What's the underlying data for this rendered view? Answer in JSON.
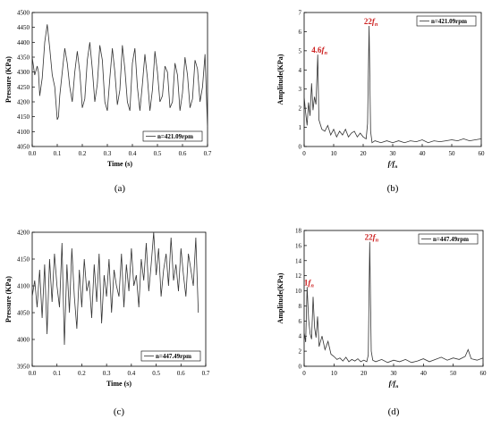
{
  "figure": {
    "background": "#ffffff",
    "line_color": "#333333",
    "accent_color": "#cc1f1f"
  },
  "chart_data": [
    {
      "id": "a",
      "type": "line",
      "caption": "(a)",
      "xlabel": "Time (s)",
      "ylabel": "Pressure (KPa)",
      "xlim": [
        0.0,
        0.7
      ],
      "ylim": [
        4050,
        4500
      ],
      "xticks": [
        "0.0",
        "0.1",
        "0.2",
        "0.3",
        "0.4",
        "0.5",
        "0.6",
        "0.7"
      ],
      "yticks": [
        "4050",
        "4100",
        "4150",
        "4200",
        "4250",
        "4300",
        "4350",
        "4400",
        "4450",
        "4500"
      ],
      "legend": "n=421.09rpm",
      "legend_position": "bottom-right",
      "series": [
        {
          "name": "n=421.09rpm",
          "x": [
            0.0,
            0.01,
            0.02,
            0.025,
            0.03,
            0.04,
            0.05,
            0.06,
            0.07,
            0.08,
            0.09,
            0.1,
            0.105,
            0.11,
            0.12,
            0.13,
            0.14,
            0.15,
            0.16,
            0.17,
            0.18,
            0.19,
            0.2,
            0.21,
            0.22,
            0.23,
            0.24,
            0.25,
            0.26,
            0.27,
            0.28,
            0.29,
            0.3,
            0.31,
            0.32,
            0.33,
            0.34,
            0.35,
            0.36,
            0.37,
            0.38,
            0.39,
            0.4,
            0.41,
            0.42,
            0.43,
            0.44,
            0.45,
            0.46,
            0.47,
            0.48,
            0.49,
            0.5,
            0.51,
            0.52,
            0.53,
            0.54,
            0.55,
            0.56,
            0.57,
            0.58,
            0.59,
            0.6,
            0.61,
            0.62,
            0.63,
            0.64,
            0.65,
            0.66,
            0.67,
            0.68,
            0.69,
            0.7
          ],
          "values": [
            4350,
            4290,
            4320,
            4300,
            4220,
            4280,
            4400,
            4460,
            4380,
            4290,
            4250,
            4140,
            4150,
            4220,
            4300,
            4380,
            4330,
            4250,
            4200,
            4300,
            4370,
            4300,
            4180,
            4210,
            4340,
            4400,
            4310,
            4200,
            4260,
            4390,
            4340,
            4200,
            4170,
            4280,
            4380,
            4300,
            4190,
            4240,
            4390,
            4310,
            4200,
            4170,
            4330,
            4380,
            4250,
            4170,
            4260,
            4360,
            4280,
            4170,
            4240,
            4370,
            4300,
            4200,
            4220,
            4320,
            4300,
            4180,
            4200,
            4330,
            4290,
            4170,
            4230,
            4350,
            4290,
            4180,
            4210,
            4340,
            4310,
            4200,
            4250,
            4360,
            4110
          ]
        }
      ]
    },
    {
      "id": "b",
      "type": "line",
      "caption": "(b)",
      "xlabel": "f/fn",
      "ylabel": "Amplitude(KPa)",
      "xlim": [
        0,
        60
      ],
      "ylim": [
        0,
        7
      ],
      "xticks": [
        "0",
        "10",
        "20",
        "30",
        "40",
        "50",
        "60"
      ],
      "yticks": [
        "0",
        "1",
        "2",
        "3",
        "4",
        "5",
        "6",
        "7"
      ],
      "legend": "n=421.09rpm",
      "legend_position": "top-right",
      "annotations": [
        {
          "text": "4.6fn",
          "x": 4.6,
          "y": 4.8
        },
        {
          "text": "22fn",
          "x": 22,
          "y": 6.3
        }
      ],
      "series": [
        {
          "name": "n=421.09rpm",
          "x": [
            0,
            0.5,
            1,
            1.5,
            2,
            2.5,
            3,
            3.5,
            4,
            4.6,
            5,
            6,
            7,
            8,
            9,
            10,
            11,
            12,
            13,
            14,
            15,
            16,
            17,
            18,
            19,
            20,
            21,
            21.5,
            22,
            22.5,
            23,
            24,
            26,
            28,
            30,
            32,
            34,
            36,
            38,
            40,
            42,
            44,
            46,
            48,
            50,
            52,
            54,
            56,
            58,
            60
          ],
          "values": [
            2.6,
            1.8,
            1.1,
            2.3,
            1.6,
            3.3,
            1.9,
            2.6,
            2.2,
            4.8,
            1.4,
            0.9,
            0.8,
            1.1,
            0.6,
            0.9,
            0.5,
            0.8,
            0.6,
            0.9,
            0.5,
            0.7,
            0.8,
            0.5,
            0.7,
            0.5,
            0.4,
            1.2,
            6.3,
            0.8,
            0.2,
            0.3,
            0.2,
            0.3,
            0.2,
            0.3,
            0.2,
            0.3,
            0.25,
            0.35,
            0.2,
            0.3,
            0.25,
            0.3,
            0.35,
            0.3,
            0.4,
            0.3,
            0.35,
            0.4
          ]
        }
      ]
    },
    {
      "id": "c",
      "type": "line",
      "caption": "(c)",
      "xlabel": "Time (s)",
      "ylabel": "Pressure (KPa)",
      "xlim": [
        0.0,
        0.7
      ],
      "ylim": [
        3950,
        4200
      ],
      "xticks": [
        "0.0",
        "0.1",
        "0.2",
        "0.3",
        "0.4",
        "0.5",
        "0.6",
        "0.7"
      ],
      "yticks": [
        "3950",
        "4000",
        "4050",
        "4100",
        "4150",
        "4200"
      ],
      "legend": "n=447.49rpm",
      "legend_position": "bottom-right",
      "series": [
        {
          "name": "n=447.49rpm",
          "x": [
            0.0,
            0.01,
            0.02,
            0.03,
            0.04,
            0.05,
            0.06,
            0.07,
            0.08,
            0.09,
            0.1,
            0.11,
            0.12,
            0.13,
            0.14,
            0.15,
            0.16,
            0.17,
            0.18,
            0.19,
            0.2,
            0.21,
            0.22,
            0.23,
            0.24,
            0.25,
            0.26,
            0.27,
            0.28,
            0.29,
            0.3,
            0.31,
            0.32,
            0.33,
            0.34,
            0.35,
            0.36,
            0.37,
            0.38,
            0.39,
            0.4,
            0.41,
            0.42,
            0.43,
            0.44,
            0.45,
            0.46,
            0.47,
            0.48,
            0.49,
            0.5,
            0.51,
            0.52,
            0.53,
            0.54,
            0.55,
            0.56,
            0.57,
            0.58,
            0.59,
            0.6,
            0.61,
            0.62,
            0.63,
            0.64,
            0.65,
            0.66,
            0.67
          ],
          "values": [
            4080,
            4110,
            4060,
            4130,
            4040,
            4140,
            4010,
            4150,
            4070,
            4160,
            4100,
            4060,
            4180,
            3990,
            4140,
            4050,
            4170,
            4080,
            4020,
            4130,
            4060,
            4150,
            4090,
            4110,
            4040,
            4140,
            4070,
            4160,
            4030,
            4120,
            4080,
            4150,
            4050,
            4130,
            4100,
            4080,
            4160,
            4060,
            4140,
            4090,
            4170,
            4100,
            4120,
            4060,
            4150,
            4110,
            4180,
            4090,
            4140,
            4200,
            4120,
            4170,
            4080,
            4130,
            4160,
            4100,
            4190,
            4110,
            4140,
            4090,
            4170,
            4120,
            4080,
            4160,
            4130,
            4100,
            4190,
            4050
          ]
        }
      ]
    },
    {
      "id": "d",
      "type": "line",
      "caption": "(d)",
      "xlabel": "f/fn",
      "ylabel": "Amplitude(KPa)",
      "xlim": [
        0,
        60
      ],
      "ylim": [
        0,
        18
      ],
      "xticks": [
        "0",
        "10",
        "20",
        "30",
        "40",
        "50",
        "60"
      ],
      "yticks": [
        "0",
        "2",
        "4",
        "6",
        "8",
        "10",
        "12",
        "14",
        "16",
        "18"
      ],
      "legend": "n=447.49rpm",
      "legend_position": "top-right",
      "annotations": [
        {
          "text": "1fn",
          "x": 1,
          "y": 10.5
        },
        {
          "text": "22fn",
          "x": 22,
          "y": 16.5
        }
      ],
      "series": [
        {
          "name": "n=447.49rpm",
          "x": [
            0,
            0.5,
            1,
            1.5,
            2,
            2.5,
            3,
            3.5,
            4,
            4.5,
            5,
            6,
            7,
            8,
            9,
            10,
            11,
            12,
            13,
            14,
            15,
            16,
            17,
            18,
            19,
            20,
            21,
            21.5,
            22,
            22.5,
            23,
            24,
            26,
            28,
            30,
            32,
            34,
            36,
            38,
            40,
            42,
            44,
            46,
            48,
            50,
            52,
            54,
            55,
            56,
            58,
            60
          ],
          "values": [
            4.5,
            3.2,
            10.5,
            6.2,
            4.3,
            3.6,
            9.2,
            5.1,
            3.8,
            6.6,
            2.6,
            4.0,
            2.2,
            3.3,
            1.6,
            1.3,
            0.9,
            1.1,
            0.7,
            1.2,
            0.6,
            0.9,
            0.7,
            1.0,
            0.6,
            0.8,
            0.6,
            1.5,
            16.5,
            2.0,
            0.8,
            0.6,
            0.9,
            0.5,
            0.8,
            0.6,
            0.9,
            0.5,
            0.7,
            1.0,
            0.6,
            0.9,
            1.2,
            0.8,
            1.1,
            0.9,
            1.3,
            2.2,
            1.0,
            0.8,
            1.1
          ]
        }
      ]
    }
  ]
}
